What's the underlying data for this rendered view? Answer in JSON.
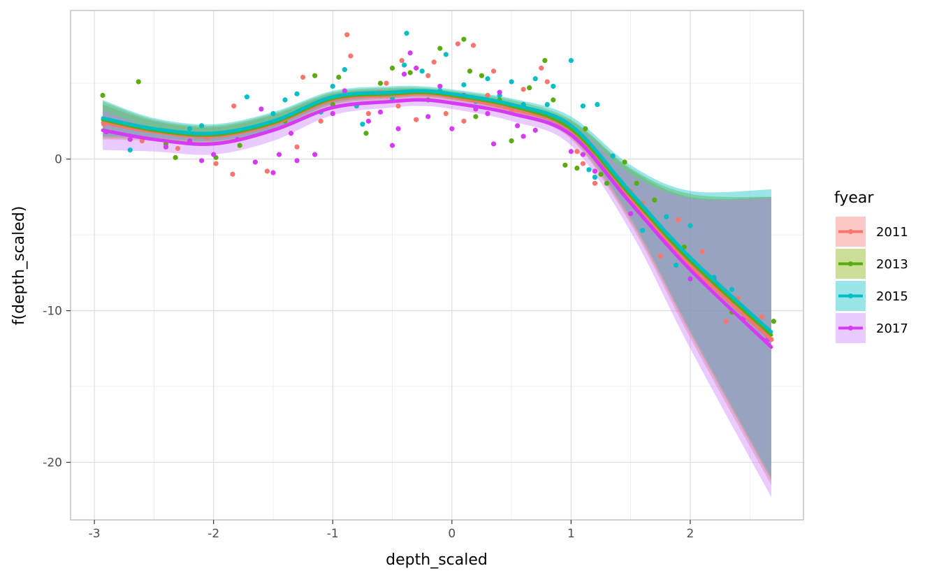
{
  "chart_data": {
    "type": "scatter",
    "xlabel": "depth_scaled",
    "ylabel": "f(depth_scaled)",
    "xlim": [
      -3.2,
      2.95
    ],
    "ylim": [
      -23.8,
      9.8
    ],
    "x_ticks": [
      -3,
      -2,
      -1,
      0,
      1,
      2
    ],
    "y_ticks": [
      -20,
      -10,
      0
    ],
    "x_tick_labels": [
      "-3",
      "-2",
      "-1",
      "0",
      "1",
      "2"
    ],
    "y_tick_labels": [
      "-20",
      "-10",
      "0"
    ],
    "grid": true,
    "legend": {
      "title": "fyear",
      "position": "right"
    },
    "series": [
      {
        "name": "2011",
        "color": "#F8766D",
        "fill": "#F8766D",
        "x": [
          -2.93,
          -2.5,
          -2.0,
          -1.5,
          -1.0,
          -0.5,
          -0.25,
          0.0,
          0.5,
          1.0,
          1.5,
          2.0,
          2.68
        ],
        "y": [
          2.4,
          1.8,
          1.5,
          2.3,
          3.9,
          4.2,
          4.3,
          4.1,
          3.3,
          1.9,
          -2.6,
          -7.0,
          -11.9
        ],
        "lower": [
          1.3,
          1.2,
          1.0,
          1.8,
          3.5,
          3.9,
          4.0,
          3.8,
          2.9,
          1.3,
          -4.3,
          -11.8,
          -21.5
        ],
        "upper": [
          3.6,
          2.5,
          2.1,
          2.9,
          4.3,
          4.6,
          4.6,
          4.4,
          3.7,
          2.5,
          -0.7,
          -2.5,
          -2.5
        ],
        "points": [
          [
            -2.92,
            2.3
          ],
          [
            -2.6,
            1.2
          ],
          [
            -2.3,
            0.7
          ],
          [
            -2.05,
            1.4
          ],
          [
            -1.98,
            -0.3
          ],
          [
            -1.84,
            -1.0
          ],
          [
            -1.83,
            3.5
          ],
          [
            -1.55,
            -0.8
          ],
          [
            -1.3,
            0.8
          ],
          [
            -1.25,
            5.4
          ],
          [
            -1.1,
            2.5
          ],
          [
            -0.9,
            4.5
          ],
          [
            -0.88,
            8.2
          ],
          [
            -0.85,
            6.8
          ],
          [
            -0.7,
            3.0
          ],
          [
            -0.6,
            4.4
          ],
          [
            -0.55,
            5.0
          ],
          [
            -0.45,
            3.5
          ],
          [
            -0.42,
            6.5
          ],
          [
            -0.3,
            2.6
          ],
          [
            -0.2,
            5.5
          ],
          [
            -0.15,
            6.4
          ],
          [
            -0.05,
            3.0
          ],
          [
            0.05,
            7.6
          ],
          [
            0.1,
            2.5
          ],
          [
            0.18,
            7.5
          ],
          [
            0.22,
            4.0
          ],
          [
            0.3,
            4.2
          ],
          [
            0.35,
            5.8
          ],
          [
            0.5,
            3.1
          ],
          [
            0.6,
            4.6
          ],
          [
            0.75,
            6.0
          ],
          [
            0.8,
            5.1
          ],
          [
            0.9,
            2.2
          ],
          [
            1.05,
            0.5
          ],
          [
            1.1,
            -0.3
          ],
          [
            1.2,
            -1.6
          ],
          [
            1.3,
            -0.5
          ],
          [
            1.5,
            -2.1
          ],
          [
            1.6,
            -2.9
          ],
          [
            1.75,
            -6.4
          ],
          [
            1.9,
            -4.0
          ],
          [
            2.1,
            -6.1
          ],
          [
            2.3,
            -10.7
          ],
          [
            2.4,
            -9.2
          ],
          [
            2.6,
            -10.4
          ],
          [
            2.68,
            -11.9
          ]
        ]
      },
      {
        "name": "2013",
        "color": "#5BAB10",
        "fill": "#7CAE00",
        "x": [
          -2.93,
          -2.5,
          -2.0,
          -1.5,
          -1.0,
          -0.5,
          -0.25,
          0.0,
          0.5,
          1.0,
          1.5,
          2.0,
          2.68
        ],
        "y": [
          2.6,
          1.9,
          1.6,
          2.4,
          4.0,
          4.3,
          4.4,
          4.2,
          3.5,
          2.0,
          -2.4,
          -6.7,
          -11.6
        ],
        "lower": [
          1.4,
          1.3,
          1.1,
          1.9,
          3.6,
          4.0,
          4.1,
          3.9,
          3.1,
          1.4,
          -4.1,
          -11.5,
          -21.2
        ],
        "upper": [
          3.8,
          2.6,
          2.2,
          3.0,
          4.4,
          4.7,
          4.7,
          4.5,
          3.9,
          2.6,
          -0.6,
          -2.3,
          -2.5
        ],
        "points": [
          [
            -2.93,
            4.2
          ],
          [
            -2.63,
            5.1
          ],
          [
            -2.4,
            1.0
          ],
          [
            -2.32,
            0.1
          ],
          [
            -1.98,
            0.1
          ],
          [
            -1.78,
            0.9
          ],
          [
            -1.65,
            -0.2
          ],
          [
            -1.4,
            2.5
          ],
          [
            -1.15,
            5.5
          ],
          [
            -1.0,
            3.6
          ],
          [
            -0.95,
            5.4
          ],
          [
            -0.72,
            1.7
          ],
          [
            -0.6,
            5.0
          ],
          [
            -0.5,
            6.0
          ],
          [
            -0.35,
            5.7
          ],
          [
            -0.2,
            3.9
          ],
          [
            -0.1,
            7.3
          ],
          [
            0.1,
            7.9
          ],
          [
            0.15,
            5.8
          ],
          [
            0.2,
            2.8
          ],
          [
            0.25,
            5.5
          ],
          [
            0.4,
            3.9
          ],
          [
            0.5,
            1.2
          ],
          [
            0.6,
            3.5
          ],
          [
            0.65,
            4.7
          ],
          [
            0.78,
            6.5
          ],
          [
            0.85,
            3.9
          ],
          [
            0.9,
            2.5
          ],
          [
            0.95,
            -0.4
          ],
          [
            1.05,
            -0.6
          ],
          [
            1.12,
            2.0
          ],
          [
            1.25,
            -1.0
          ],
          [
            1.3,
            -1.6
          ],
          [
            1.45,
            -0.2
          ],
          [
            1.55,
            -1.6
          ],
          [
            1.7,
            -2.7
          ],
          [
            1.8,
            -5.0
          ],
          [
            1.95,
            -5.8
          ],
          [
            2.1,
            -7.7
          ],
          [
            2.35,
            -10.1
          ],
          [
            2.5,
            -10.6
          ],
          [
            2.7,
            -10.7
          ]
        ]
      },
      {
        "name": "2015",
        "color": "#00BFC4",
        "fill": "#00BFC4",
        "x": [
          -2.93,
          -2.5,
          -2.0,
          -1.5,
          -1.0,
          -0.5,
          -0.25,
          0.0,
          0.5,
          1.0,
          1.5,
          2.0,
          2.68
        ],
        "y": [
          2.7,
          2.0,
          1.7,
          2.5,
          4.1,
          4.4,
          4.5,
          4.3,
          3.6,
          2.2,
          -2.2,
          -6.5,
          -11.4
        ],
        "lower": [
          1.5,
          1.4,
          1.2,
          2.0,
          3.7,
          4.1,
          4.2,
          4.0,
          3.2,
          1.6,
          -3.9,
          -11.3,
          -21.0
        ],
        "upper": [
          3.9,
          2.7,
          2.3,
          3.1,
          4.5,
          4.8,
          4.8,
          4.6,
          4.0,
          2.8,
          -0.4,
          -2.1,
          -2.0
        ],
        "points": [
          [
            -2.7,
            0.6
          ],
          [
            -2.2,
            2.0
          ],
          [
            -2.1,
            2.2
          ],
          [
            -1.72,
            4.1
          ],
          [
            -1.5,
            3.0
          ],
          [
            -1.4,
            3.9
          ],
          [
            -1.3,
            4.3
          ],
          [
            -1.1,
            3.1
          ],
          [
            -1.0,
            4.8
          ],
          [
            -0.9,
            5.9
          ],
          [
            -0.8,
            3.5
          ],
          [
            -0.75,
            2.3
          ],
          [
            -0.6,
            4.2
          ],
          [
            -0.5,
            4.0
          ],
          [
            -0.4,
            6.2
          ],
          [
            -0.38,
            8.3
          ],
          [
            -0.25,
            5.8
          ],
          [
            -0.1,
            4.5
          ],
          [
            -0.05,
            6.9
          ],
          [
            0.1,
            4.9
          ],
          [
            0.2,
            3.8
          ],
          [
            0.3,
            5.3
          ],
          [
            0.4,
            4.2
          ],
          [
            0.5,
            5.1
          ],
          [
            0.6,
            3.6
          ],
          [
            0.7,
            5.3
          ],
          [
            0.8,
            3.6
          ],
          [
            0.85,
            4.8
          ],
          [
            1.0,
            6.5
          ],
          [
            1.05,
            1.7
          ],
          [
            1.1,
            3.5
          ],
          [
            1.15,
            -0.7
          ],
          [
            1.2,
            -1.2
          ],
          [
            1.22,
            3.6
          ],
          [
            1.35,
            0.2
          ],
          [
            1.5,
            -2.4
          ],
          [
            1.6,
            -4.7
          ],
          [
            1.8,
            -3.8
          ],
          [
            1.88,
            -7.0
          ],
          [
            2.0,
            -4.4
          ],
          [
            2.2,
            -7.8
          ],
          [
            2.35,
            -8.6
          ],
          [
            2.5,
            -10.3
          ],
          [
            2.65,
            -11.3
          ]
        ]
      },
      {
        "name": "2017",
        "color": "#D63AF5",
        "fill": "#C77CFF",
        "x": [
          -2.93,
          -2.5,
          -2.0,
          -1.5,
          -1.0,
          -0.5,
          -0.25,
          0.0,
          0.5,
          1.0,
          1.5,
          2.0,
          2.68
        ],
        "y": [
          1.9,
          1.3,
          1.0,
          1.9,
          3.4,
          3.8,
          3.9,
          3.7,
          3.0,
          1.6,
          -2.9,
          -7.3,
          -12.4
        ],
        "lower": [
          0.6,
          0.5,
          0.3,
          1.2,
          2.9,
          3.4,
          3.5,
          3.3,
          2.5,
          0.9,
          -4.8,
          -12.5,
          -22.3
        ],
        "upper": [
          3.2,
          2.1,
          1.7,
          2.6,
          3.9,
          4.2,
          4.3,
          4.1,
          3.5,
          2.3,
          -1.0,
          -2.6,
          -2.6
        ],
        "points": [
          [
            -2.9,
            1.8
          ],
          [
            -2.7,
            1.3
          ],
          [
            -2.4,
            0.8
          ],
          [
            -2.2,
            1.2
          ],
          [
            -2.1,
            -0.1
          ],
          [
            -2.0,
            0.3
          ],
          [
            -1.8,
            1.3
          ],
          [
            -1.65,
            -0.2
          ],
          [
            -1.6,
            3.3
          ],
          [
            -1.5,
            -0.9
          ],
          [
            -1.45,
            0.3
          ],
          [
            -1.35,
            1.7
          ],
          [
            -1.3,
            -0.1
          ],
          [
            -1.15,
            0.3
          ],
          [
            -1.0,
            3.0
          ],
          [
            -0.9,
            4.5
          ],
          [
            -0.7,
            2.5
          ],
          [
            -0.6,
            3.1
          ],
          [
            -0.5,
            0.9
          ],
          [
            -0.45,
            2.0
          ],
          [
            -0.4,
            5.6
          ],
          [
            -0.35,
            7.0
          ],
          [
            -0.3,
            6.0
          ],
          [
            -0.2,
            2.8
          ],
          [
            -0.1,
            4.8
          ],
          [
            0.0,
            2.0
          ],
          [
            0.1,
            4.2
          ],
          [
            0.2,
            3.3
          ],
          [
            0.3,
            3.0
          ],
          [
            0.35,
            1.0
          ],
          [
            0.4,
            4.4
          ],
          [
            0.55,
            2.2
          ],
          [
            0.6,
            1.5
          ],
          [
            0.7,
            1.9
          ],
          [
            0.85,
            2.6
          ],
          [
            1.0,
            0.5
          ],
          [
            1.1,
            0.3
          ],
          [
            1.2,
            -0.8
          ],
          [
            1.4,
            -1.9
          ],
          [
            1.5,
            -3.6
          ],
          [
            1.65,
            -3.6
          ],
          [
            1.8,
            -5.2
          ],
          [
            2.0,
            -7.9
          ],
          [
            2.2,
            -8.0
          ],
          [
            2.45,
            -10.5
          ],
          [
            2.65,
            -11.9
          ]
        ]
      }
    ]
  }
}
